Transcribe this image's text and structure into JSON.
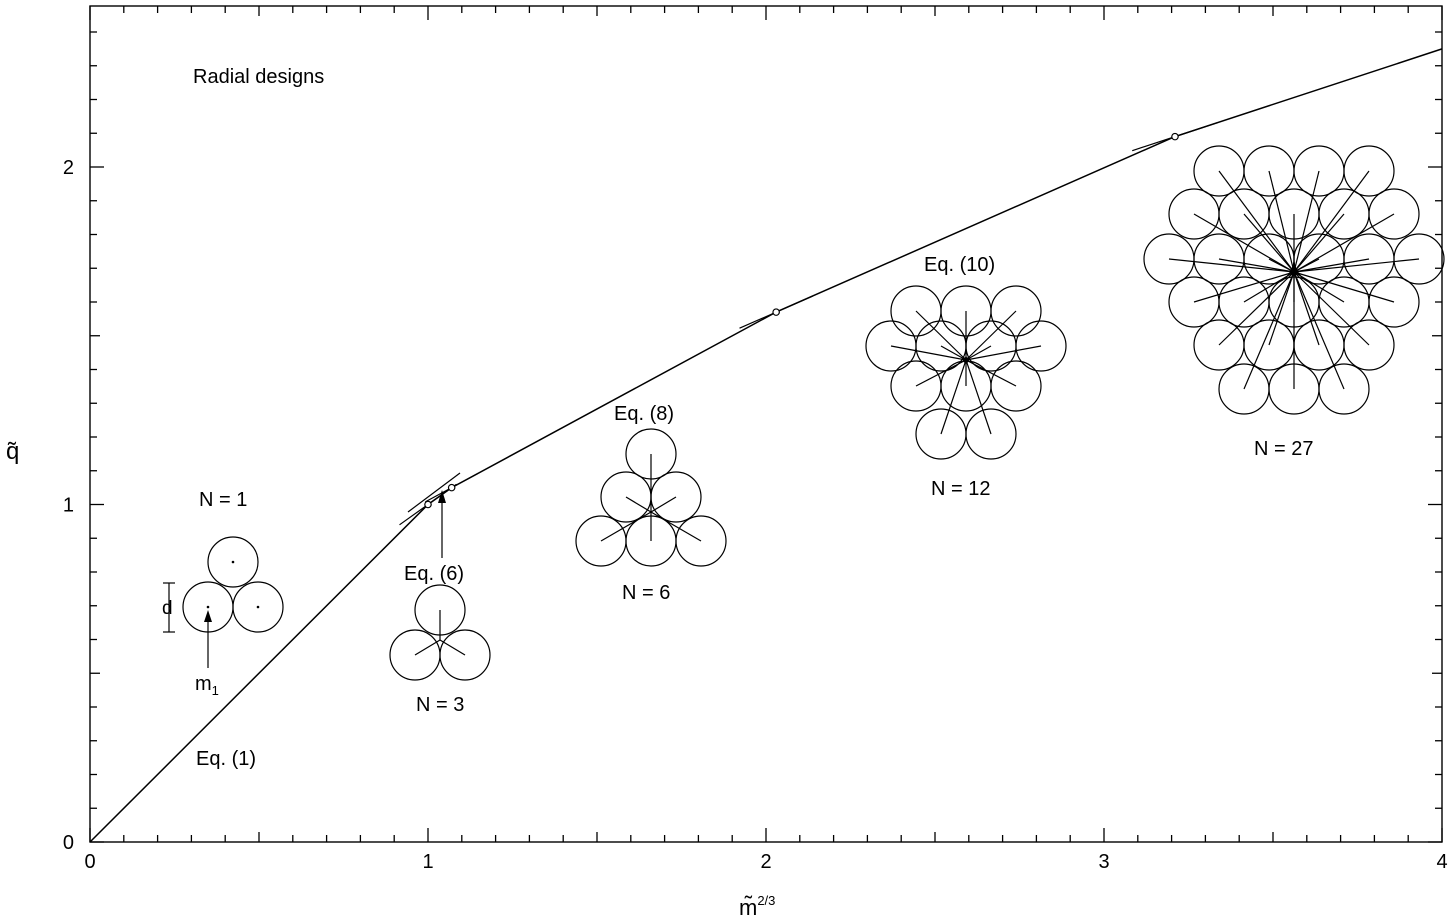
{
  "chart_data": {
    "type": "line",
    "annotation_title": "Radial designs",
    "xlabel_base": "m̃",
    "xlabel_sup": "2/3",
    "ylabel": "q̃",
    "xlim": [
      0,
      4
    ],
    "ylim": [
      0,
      2.4
    ],
    "x_ticks": [
      {
        "value": 0,
        "label": "0"
      },
      {
        "value": 1,
        "label": "1"
      },
      {
        "value": 2,
        "label": "2"
      },
      {
        "value": 3,
        "label": "3"
      },
      {
        "value": 4,
        "label": "4"
      }
    ],
    "y_ticks": [
      {
        "value": 0,
        "label": "0"
      },
      {
        "value": 1,
        "label": "1"
      },
      {
        "value": 2,
        "label": "2"
      }
    ],
    "x_minor_step": 0.1,
    "y_minor_step": 0.1,
    "grid": false,
    "series": [
      {
        "name": "",
        "x": [
          0,
          1.0,
          1.07,
          2.03,
          3.21,
          4.0
        ],
        "y": [
          0,
          1.0,
          1.05,
          1.57,
          2.09,
          2.35
        ]
      }
    ],
    "markers": [
      {
        "x": 1.0,
        "y": 1.0
      },
      {
        "x": 1.07,
        "y": 1.05
      },
      {
        "x": 2.03,
        "y": 1.57
      },
      {
        "x": 3.21,
        "y": 2.09
      }
    ],
    "annotations": {
      "eq1": "Eq. (1)",
      "eq6": "Eq. (6)",
      "eq8": "Eq. (8)",
      "eq10": "Eq. (10)",
      "n1": "N = 1",
      "n3": "N = 3",
      "n6": "N = 6",
      "n12": "N = 12",
      "n27": "N = 27",
      "d_label": "d",
      "m1_base": "m",
      "m1_sub": "1"
    }
  }
}
